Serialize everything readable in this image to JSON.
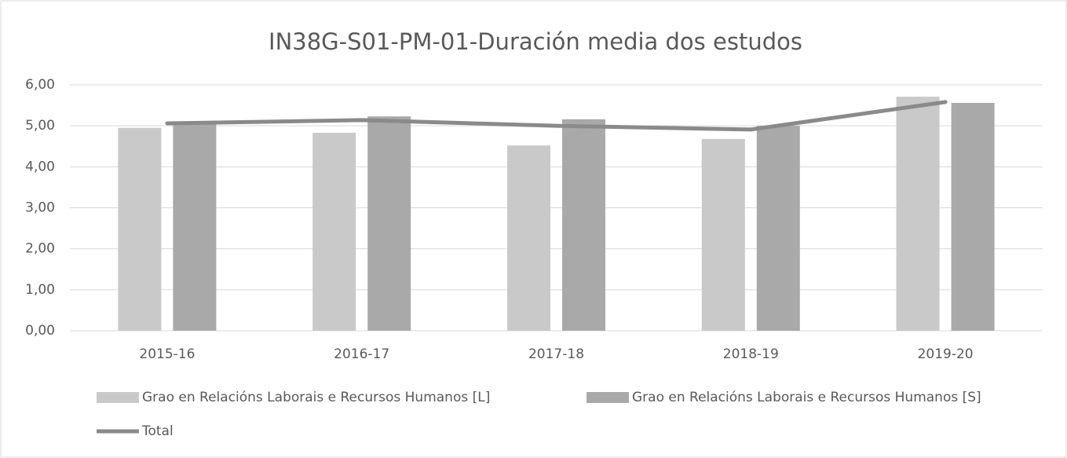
{
  "chart_data": {
    "type": "bar",
    "title": "IN38G-S01-PM-01-Duración media dos estudos",
    "categories": [
      "2015-16",
      "2016-17",
      "2017-18",
      "2018-19",
      "2019-20"
    ],
    "series": [
      {
        "name": "Grao en Relacións Laborais e Recursos Humanos [L]",
        "color": "#c9c9c9",
        "type": "bar",
        "values": [
          4.95,
          4.83,
          4.52,
          4.68,
          5.71
        ]
      },
      {
        "name": "Grao en Relacións Laborais e Recursos Humanos [S]",
        "color": "#a9a9a9",
        "type": "bar",
        "values": [
          5.06,
          5.23,
          5.16,
          5.0,
          5.56
        ]
      },
      {
        "name": "Total",
        "color": "#8a8a8a",
        "type": "line",
        "values": [
          5.06,
          5.14,
          5.0,
          4.91,
          5.58
        ]
      }
    ],
    "ylim": [
      0,
      6
    ],
    "yticks": [
      {
        "value": 0,
        "label": "0,00"
      },
      {
        "value": 1,
        "label": "1,00"
      },
      {
        "value": 2,
        "label": "2,00"
      },
      {
        "value": 3,
        "label": "3,00"
      },
      {
        "value": 4,
        "label": "4,00"
      },
      {
        "value": 5,
        "label": "5,00"
      },
      {
        "value": 6,
        "label": "6,00"
      }
    ],
    "grid": true
  }
}
